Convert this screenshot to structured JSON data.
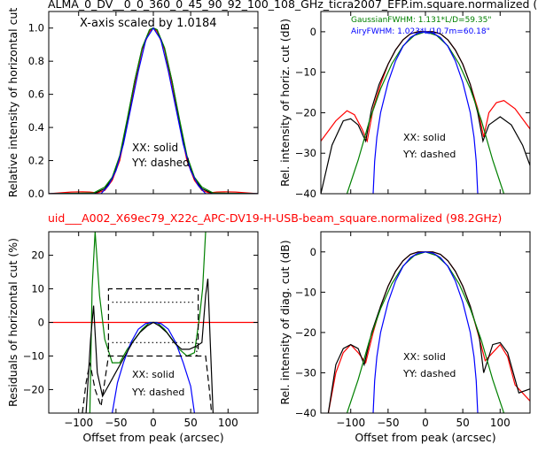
{
  "figure": {
    "top_title": "ALMA_0_DV__0_0_360_0_45_90_92_100_108_GHz_ticra2007_EFP.im.square.normalized (",
    "middle_title": "uid___A002_X69ec79_X22c_APC-DV19-H-USB-beam_square.normalized (98.2GHz)",
    "colors": {
      "red": "#ff0000",
      "black": "#000000",
      "green": "#008000",
      "blue": "#0000ff",
      "title_red": "#ff0000"
    }
  },
  "chart_data": [
    {
      "id": "p1",
      "type": "line",
      "xlim": [
        -140,
        140
      ],
      "ylim": [
        0.0,
        1.1
      ],
      "ylabel": "Relative intensity of horizontal cut",
      "xlabel": "",
      "xticks": [
        -100,
        -50,
        0,
        50,
        100
      ],
      "yticks": [
        0.0,
        0.2,
        0.4,
        0.6,
        0.8,
        1.0
      ],
      "ytick_labels": [
        "0.0",
        "0.2",
        "0.4",
        "0.6",
        "0.8",
        "1.0"
      ],
      "show_xtick_labels": false,
      "annotations": [
        "X-axis scaled by 1.0184",
        "XX: solid",
        "YY: dashed"
      ],
      "series": [
        {
          "color": "#ff0000",
          "style": "solid",
          "x": [
            -140,
            -110,
            -95,
            -85,
            -75,
            -65,
            -55,
            -45,
            -35,
            -25,
            -15,
            -5,
            0,
            5,
            15,
            25,
            35,
            45,
            55,
            65,
            75,
            85,
            95,
            110,
            140
          ],
          "y": [
            0.0,
            0.01,
            0.012,
            0.01,
            0.005,
            0.02,
            0.08,
            0.2,
            0.42,
            0.66,
            0.87,
            0.98,
            1.0,
            0.98,
            0.87,
            0.66,
            0.42,
            0.2,
            0.08,
            0.02,
            0.005,
            0.01,
            0.012,
            0.01,
            0.0
          ]
        },
        {
          "color": "#000000",
          "style": "solid",
          "x": [
            -140,
            -80,
            -65,
            -55,
            -45,
            -35,
            -25,
            -15,
            -5,
            0,
            5,
            15,
            25,
            35,
            45,
            55,
            65,
            80,
            140
          ],
          "y": [
            0.0,
            0.0,
            0.03,
            0.09,
            0.22,
            0.44,
            0.68,
            0.88,
            0.99,
            1.0,
            0.99,
            0.88,
            0.68,
            0.44,
            0.22,
            0.09,
            0.03,
            0.0,
            0.0
          ]
        },
        {
          "color": "#008000",
          "style": "solid",
          "x": [
            -140,
            -80,
            -65,
            -55,
            -45,
            -35,
            -25,
            -15,
            -5,
            0,
            5,
            15,
            25,
            35,
            45,
            55,
            65,
            80,
            140
          ],
          "y": [
            0.0,
            0.005,
            0.04,
            0.1,
            0.23,
            0.45,
            0.68,
            0.88,
            0.99,
            1.0,
            0.99,
            0.88,
            0.68,
            0.45,
            0.23,
            0.1,
            0.04,
            0.005,
            0.0
          ]
        },
        {
          "color": "#0000ff",
          "style": "solid",
          "x": [
            -140,
            -70,
            -60,
            -50,
            -40,
            -30,
            -20,
            -10,
            0,
            10,
            20,
            30,
            40,
            50,
            60,
            70,
            140
          ],
          "y": [
            0.0,
            0.0,
            0.05,
            0.14,
            0.3,
            0.52,
            0.74,
            0.93,
            1.0,
            0.93,
            0.74,
            0.52,
            0.3,
            0.14,
            0.05,
            0.0,
            0.0
          ]
        }
      ]
    },
    {
      "id": "p2",
      "type": "line",
      "xlim": [
        -140,
        140
      ],
      "ylim": [
        -40,
        5
      ],
      "ylabel": "Rel. intensity of horiz. cut (dB)",
      "xlabel": "",
      "xticks": [
        -100,
        -50,
        0,
        50,
        100
      ],
      "yticks": [
        0,
        -10,
        -20,
        -30,
        -40
      ],
      "ytick_labels": [
        "0",
        "−10",
        "−20",
        "−30",
        "−40"
      ],
      "show_xtick_labels": false,
      "annotations": [
        "GaussianFWHM: 1.131*L/D=59.35\"",
        "AiryFWHM: 1.023*L/10.7m=60.18\"",
        "XX: solid",
        "YY: dashed"
      ],
      "series": [
        {
          "color": "#ff0000",
          "style": "solid",
          "x": [
            -140,
            -120,
            -105,
            -95,
            -85,
            -78,
            -70,
            -60,
            -50,
            -40,
            -30,
            -20,
            -10,
            0,
            10,
            20,
            30,
            40,
            50,
            60,
            70,
            78,
            85,
            95,
            105,
            120,
            140
          ],
          "y": [
            -27,
            -22,
            -19.5,
            -20.5,
            -24,
            -27,
            -19,
            -13,
            -8,
            -4.5,
            -2,
            -0.5,
            0,
            0,
            0,
            -0.5,
            -2,
            -4.5,
            -8,
            -13,
            -19,
            -26,
            -20,
            -17.5,
            -17,
            -19,
            -24
          ]
        },
        {
          "color": "#000000",
          "style": "solid",
          "x": [
            -140,
            -125,
            -110,
            -100,
            -90,
            -80,
            -72,
            -62,
            -50,
            -40,
            -30,
            -20,
            -10,
            0,
            10,
            20,
            30,
            40,
            50,
            60,
            70,
            77,
            85,
            100,
            115,
            130,
            140
          ],
          "y": [
            -40,
            -28,
            -22,
            -21.5,
            -23,
            -27,
            -19,
            -13,
            -8,
            -4.5,
            -2,
            -0.5,
            0,
            0,
            0,
            -0.5,
            -2,
            -4.5,
            -8,
            -13,
            -20,
            -27,
            -23,
            -21,
            -23,
            -28,
            -33
          ]
        },
        {
          "color": "#008000",
          "style": "solid",
          "x": [
            -105,
            -90,
            -75,
            -60,
            -45,
            -30,
            -15,
            0,
            15,
            30,
            45,
            60,
            75,
            90,
            105
          ],
          "y": [
            -40,
            -31.7,
            -22,
            -14.1,
            -7.9,
            -3.5,
            -0.9,
            0,
            -0.9,
            -3.5,
            -7.9,
            -14.1,
            -22,
            -31.7,
            -40
          ]
        },
        {
          "color": "#0000ff",
          "style": "solid",
          "x": [
            -70,
            -68,
            -65,
            -60,
            -50,
            -40,
            -30,
            -20,
            -10,
            0,
            10,
            20,
            30,
            40,
            50,
            60,
            65,
            68,
            70
          ],
          "y": [
            -40,
            -32,
            -26,
            -20,
            -12.5,
            -7.2,
            -3.6,
            -1.4,
            -0.3,
            0,
            -0.3,
            -1.4,
            -3.6,
            -7.2,
            -12.5,
            -20,
            -26,
            -32,
            -40
          ]
        }
      ]
    },
    {
      "id": "p3",
      "type": "line",
      "xlim": [
        -140,
        140
      ],
      "ylim": [
        -27,
        27
      ],
      "ylabel": "Residuals of horizontal cut (%)",
      "xlabel": "Offset from peak (arcsec)",
      "xticks": [
        -100,
        -50,
        0,
        50,
        100
      ],
      "xtick_labels": [
        "−100",
        "−50",
        "0",
        "50",
        "100"
      ],
      "yticks": [
        20,
        10,
        0,
        -10,
        -20
      ],
      "ytick_labels": [
        "20",
        "10",
        "0",
        "−10",
        "−20"
      ],
      "show_xtick_labels": true,
      "annotations": [
        "XX: solid",
        "YY: dashed"
      ],
      "series": [
        {
          "color": "#ff0000",
          "style": "solid",
          "x": [
            -140,
            140
          ],
          "y": [
            0,
            0
          ]
        },
        {
          "color": "#008000",
          "style": "solid",
          "x": [
            -85,
            -82,
            -78,
            -72,
            -65,
            -55,
            -45,
            -35,
            -25,
            -15,
            -5,
            0,
            5,
            15,
            25,
            35,
            45,
            55,
            62,
            66,
            70
          ],
          "y": [
            -27,
            10,
            27,
            8,
            -5,
            -12,
            -12,
            -8,
            -5,
            -2,
            0,
            0,
            0,
            -2,
            -5,
            -8,
            -10,
            -9,
            2,
            10,
            27
          ]
        },
        {
          "color": "#0000ff",
          "style": "solid",
          "x": [
            -55,
            -48,
            -40,
            -30,
            -20,
            -10,
            0,
            10,
            20,
            30,
            40,
            50,
            55
          ],
          "y": [
            -27,
            -18,
            -12,
            -6,
            -2,
            -0.3,
            0,
            -0.3,
            -2,
            -6,
            -12,
            -19,
            -27
          ]
        },
        {
          "color": "#000000",
          "style": "solid",
          "x": [
            -90,
            -84,
            -80,
            -75,
            -68,
            -58,
            -48,
            -38,
            -28,
            -18,
            -8,
            0,
            8,
            18,
            28,
            38,
            48,
            58,
            65,
            70,
            73,
            76,
            80
          ],
          "y": [
            -27,
            -5,
            5,
            -15,
            -22,
            -18,
            -14,
            -10,
            -6,
            -3,
            -1,
            0,
            -1,
            -3,
            -6,
            -8,
            -8,
            -7,
            -6,
            8,
            13,
            -5,
            -27
          ]
        },
        {
          "color": "#000000",
          "style": "dashed",
          "x": [
            -95,
            -90,
            -85,
            -78,
            -70,
            -60,
            -40,
            -20,
            0,
            20,
            40,
            60,
            70,
            75,
            78
          ],
          "y": [
            -27,
            -18,
            -12,
            -20,
            -25,
            -10,
            -10,
            -10,
            -10,
            -10,
            -10,
            -10,
            -10,
            -20,
            -27
          ]
        },
        {
          "color": "#000000",
          "style": "dashed",
          "x": [
            -60,
            -60,
            60,
            60
          ],
          "y": [
            -8,
            10,
            10,
            -8
          ]
        },
        {
          "color": "#000000",
          "style": "dotted",
          "x": [
            -55,
            55
          ],
          "y": [
            6,
            6
          ]
        },
        {
          "color": "#000000",
          "style": "dotted",
          "x": [
            -55,
            55
          ],
          "y": [
            -6,
            -6
          ]
        },
        {
          "color": "#000000",
          "style": "dotted",
          "x": [
            -60,
            -60
          ],
          "y": [
            -10,
            -4
          ]
        },
        {
          "color": "#000000",
          "style": "dotted",
          "x": [
            58,
            58
          ],
          "y": [
            -10,
            -4
          ]
        }
      ]
    },
    {
      "id": "p4",
      "type": "line",
      "xlim": [
        -140,
        140
      ],
      "ylim": [
        -40,
        5
      ],
      "ylabel": "Rel. intensity of diag. cut (dB)",
      "xlabel": "Offset from peak (arcsec)",
      "xticks": [
        -100,
        -50,
        0,
        50,
        100
      ],
      "xtick_labels": [
        "−100",
        "−50",
        "0",
        "50",
        "100"
      ],
      "yticks": [
        0,
        -10,
        -20,
        -30,
        -40
      ],
      "ytick_labels": [
        "0",
        "−10",
        "−20",
        "−30",
        "−40"
      ],
      "show_xtick_labels": true,
      "annotations": [
        "XX: solid",
        "YY: dashed"
      ],
      "series": [
        {
          "color": "#ff0000",
          "style": "solid",
          "x": [
            -130,
            -120,
            -110,
            -100,
            -90,
            -80,
            -70,
            -60,
            -50,
            -40,
            -30,
            -20,
            -10,
            0,
            10,
            20,
            30,
            40,
            50,
            60,
            70,
            80,
            90,
            100,
            110,
            120,
            140
          ],
          "y": [
            -40,
            -30,
            -25,
            -23,
            -25,
            -27.5,
            -20,
            -13.5,
            -8.5,
            -4.8,
            -2.2,
            -0.6,
            0,
            0,
            0,
            -0.6,
            -2.2,
            -4.8,
            -8.5,
            -13.5,
            -20,
            -27,
            -25,
            -23,
            -26,
            -33,
            -37
          ]
        },
        {
          "color": "#000000",
          "style": "solid",
          "x": [
            -130,
            -120,
            -110,
            -100,
            -90,
            -82,
            -72,
            -60,
            -50,
            -40,
            -30,
            -20,
            -10,
            0,
            10,
            20,
            30,
            40,
            50,
            60,
            72,
            78,
            90,
            100,
            110,
            125,
            140
          ],
          "y": [
            -40,
            -28,
            -24,
            -23,
            -24,
            -28,
            -20,
            -13.5,
            -8.5,
            -4.8,
            -2.2,
            -0.6,
            0,
            0,
            0,
            -0.6,
            -2.2,
            -4.8,
            -8.5,
            -13.5,
            -21,
            -30,
            -23,
            -22.5,
            -25,
            -35,
            -34
          ]
        },
        {
          "color": "#008000",
          "style": "solid",
          "x": [
            -105,
            -90,
            -75,
            -60,
            -45,
            -30,
            -15,
            0,
            15,
            30,
            45,
            60,
            75,
            90,
            105
          ],
          "y": [
            -40,
            -31.7,
            -22,
            -14.1,
            -7.9,
            -3.5,
            -0.9,
            0,
            -0.9,
            -3.5,
            -7.9,
            -14.1,
            -22,
            -31.7,
            -40
          ]
        },
        {
          "color": "#0000ff",
          "style": "solid",
          "x": [
            -70,
            -68,
            -65,
            -60,
            -50,
            -40,
            -30,
            -20,
            -10,
            0,
            10,
            20,
            30,
            40,
            50,
            60,
            65,
            68,
            70
          ],
          "y": [
            -40,
            -32,
            -26,
            -20,
            -12.5,
            -7.2,
            -3.6,
            -1.4,
            -0.3,
            0,
            -0.3,
            -1.4,
            -3.6,
            -7.2,
            -12.5,
            -20,
            -26,
            -32,
            -40
          ]
        }
      ]
    }
  ]
}
